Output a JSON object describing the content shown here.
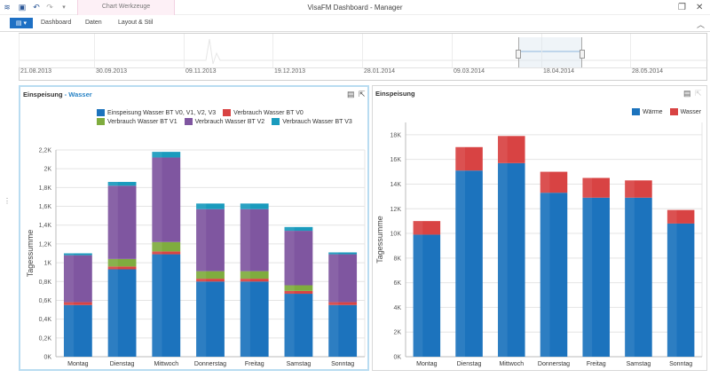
{
  "app": {
    "title": "VisaFM Dashboard - Manager",
    "context_tab": "Chart Werkzeuge",
    "ribbon_tabs": [
      "Dashboard",
      "Daten",
      "Layout & Stil"
    ],
    "file_icon": "app-menu-icon"
  },
  "colors": {
    "einspeisung": "#1c73bd",
    "verbrauch_v0": "#d84343",
    "verbrauch_v1": "#7fac3e",
    "verbrauch_v2": "#7f56a0",
    "verbrauch_v3": "#1a9bbd",
    "waerme": "#1c73bd",
    "wasser": "#d84343"
  },
  "timeline": {
    "dates": [
      "21.08.2013",
      "30.09.2013",
      "09.11.2013",
      "19.12.2013",
      "28.01.2014",
      "09.03.2014",
      "18.04.2014",
      "28.05.2014"
    ]
  },
  "panel1": {
    "title": "Einspeisung",
    "title_sep": " - ",
    "subtitle": "Wasser"
  },
  "panel2": {
    "title": "Einspeisung"
  },
  "chart_data": [
    {
      "type": "bar",
      "stacked": true,
      "categories": [
        "Montag",
        "Dienstag",
        "Mittwoch",
        "Donnerstag",
        "Freitag",
        "Samstag",
        "Sonntag"
      ],
      "ylabel": "Tagessumme",
      "ylim": [
        0,
        2200
      ],
      "yticks": [
        "0K",
        "0,2K",
        "0,4K",
        "0,6K",
        "0,8K",
        "1K",
        "1,2K",
        "1,4K",
        "1,6K",
        "1,8K",
        "2K",
        "2,2K"
      ],
      "legend_position": "top-right",
      "grid": true,
      "series": [
        {
          "name": "Einspeisung Wasser BT V0, V1, V2, V3",
          "color_key": "einspeisung",
          "values": [
            550,
            930,
            1090,
            800,
            800,
            670,
            550
          ]
        },
        {
          "name": "Verbrauch Wasser BT V0",
          "color_key": "verbrauch_v0",
          "values": [
            30,
            30,
            30,
            30,
            30,
            30,
            30
          ]
        },
        {
          "name": "Verbrauch Wasser BT V1",
          "color_key": "verbrauch_v1",
          "values": [
            0,
            80,
            100,
            80,
            80,
            60,
            0
          ]
        },
        {
          "name": "Verbrauch Wasser BT V2",
          "color_key": "verbrauch_v2",
          "values": [
            500,
            780,
            900,
            660,
            660,
            580,
            510
          ]
        },
        {
          "name": "Verbrauch Wasser BT V3",
          "color_key": "verbrauch_v3",
          "values": [
            20,
            40,
            60,
            60,
            60,
            40,
            20
          ]
        }
      ]
    },
    {
      "type": "bar",
      "stacked": true,
      "categories": [
        "Montag",
        "Dienstag",
        "Mittwoch",
        "Donnerstag",
        "Freitag",
        "Samstag",
        "Sonntag"
      ],
      "ylabel": "Tagessumme",
      "ylim": [
        0,
        19000
      ],
      "yticks": [
        "0K",
        "2K",
        "4K",
        "6K",
        "8K",
        "10K",
        "12K",
        "14K",
        "16K",
        "18K"
      ],
      "legend_position": "top-right",
      "grid": true,
      "series": [
        {
          "name": "Wärme",
          "color_key": "waerme",
          "values": [
            9900,
            15100,
            15700,
            13300,
            12900,
            12900,
            10800
          ]
        },
        {
          "name": "Wasser",
          "color_key": "wasser",
          "values": [
            1100,
            1900,
            2200,
            1700,
            1600,
            1400,
            1100
          ]
        }
      ]
    }
  ]
}
